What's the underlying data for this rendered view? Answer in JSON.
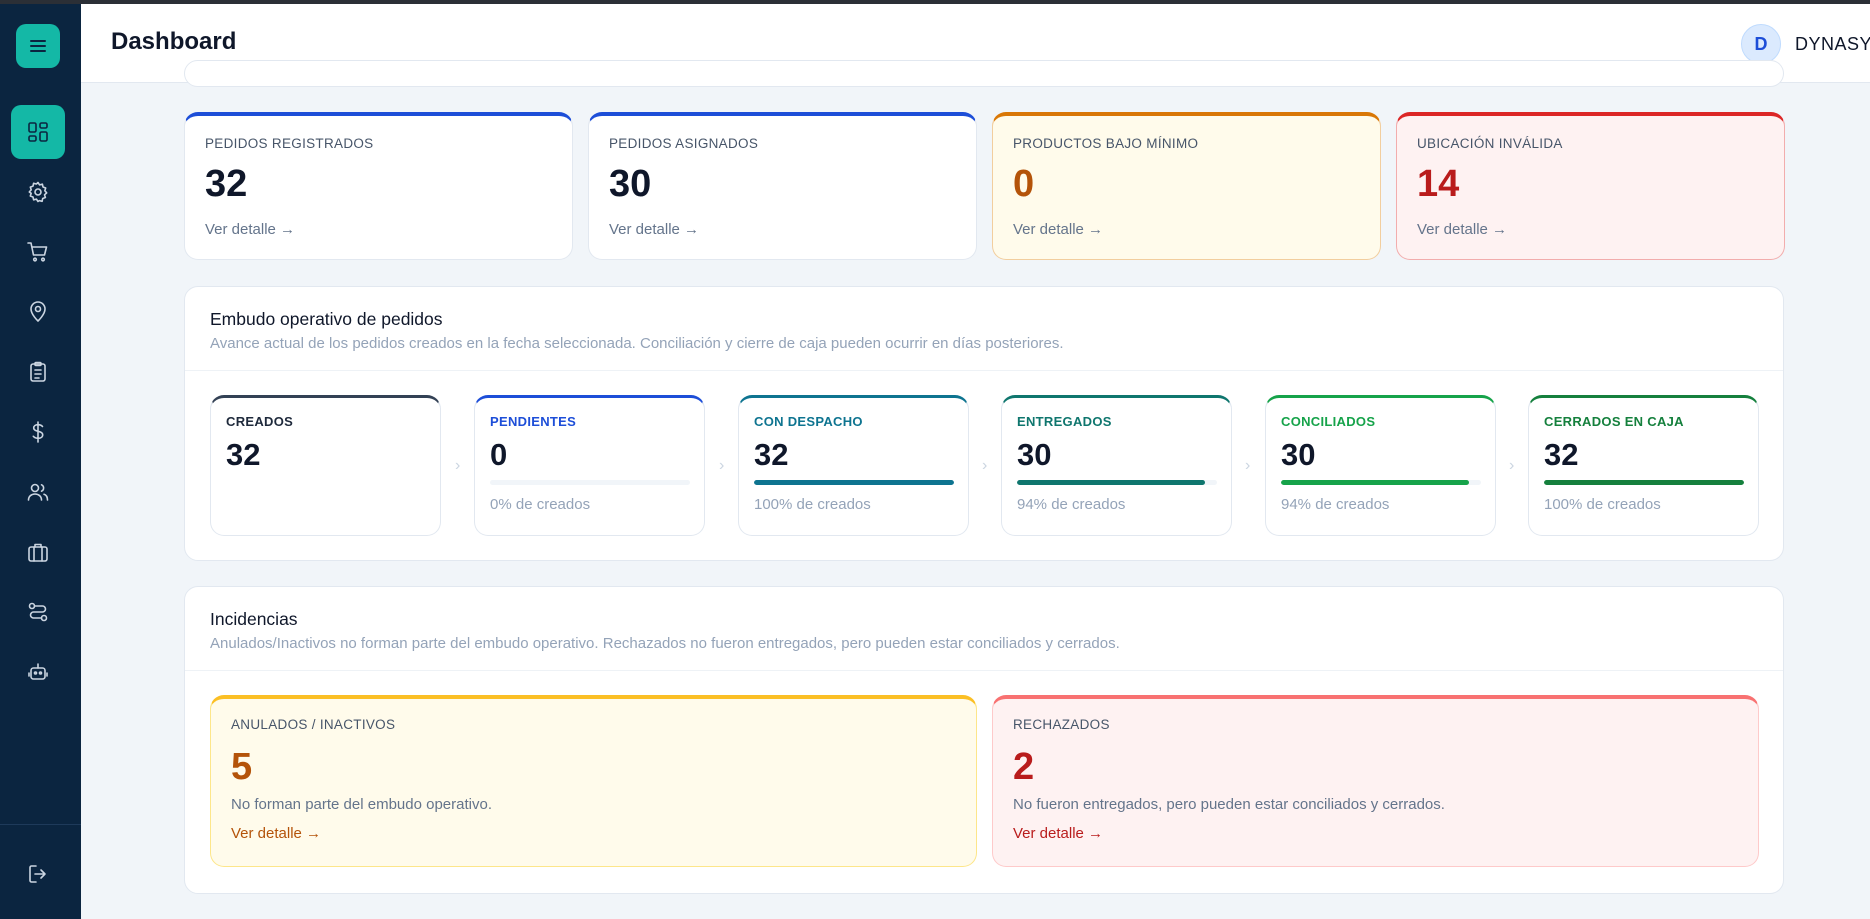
{
  "header": {
    "title": "Dashboard",
    "avatar_initial": "D",
    "user_name": "DYNASYS"
  },
  "sidebar": {
    "items": [
      {
        "icon": "dashboard-icon",
        "active": true
      },
      {
        "icon": "gear-icon"
      },
      {
        "icon": "cart-icon"
      },
      {
        "icon": "location-pin-icon"
      },
      {
        "icon": "clipboard-icon"
      },
      {
        "icon": "dollar-icon"
      },
      {
        "icon": "users-icon"
      },
      {
        "icon": "briefcase-icon"
      },
      {
        "icon": "route-icon"
      },
      {
        "icon": "robot-icon"
      }
    ],
    "logout_icon": "logout-icon"
  },
  "kpis": [
    {
      "label": "PEDIDOS REGISTRADOS",
      "value": "32",
      "link": "Ver detalle →",
      "accent": "#1d4ed8",
      "value_color": "#0f172a",
      "bg": "#ffffff"
    },
    {
      "label": "PEDIDOS ASIGNADOS",
      "value": "30",
      "link": "Ver detalle →",
      "accent": "#1d4ed8",
      "value_color": "#0f172a",
      "bg": "#ffffff"
    },
    {
      "label": "PRODUCTOS BAJO MÍNIMO",
      "value": "0",
      "link": "Ver detalle →",
      "accent": "#d97706",
      "value_color": "#b45309",
      "bg": "#fffbeb"
    },
    {
      "label": "UBICACIÓN INVÁLIDA",
      "value": "14",
      "link": "Ver detalle →",
      "accent": "#dc2626",
      "value_color": "#b91c1c",
      "bg": "#fef2f2"
    }
  ],
  "funnel": {
    "title": "Embudo operativo de pedidos",
    "subtitle": "Avance actual de los pedidos creados en la fecha seleccionada. Conciliación y cierre de caja pueden ocurrir en días posteriores.",
    "separator": "›",
    "stages": [
      {
        "label": "CREADOS",
        "value": "32",
        "percent": null,
        "pct_text": "",
        "color": "#334155"
      },
      {
        "label": "PENDIENTES",
        "value": "0",
        "percent": 0,
        "pct_text": "0% de creados",
        "color": "#1d4ed8"
      },
      {
        "label": "CON DESPACHO",
        "value": "32",
        "percent": 100,
        "pct_text": "100% de creados",
        "color": "#0e7490"
      },
      {
        "label": "ENTREGADOS",
        "value": "30",
        "percent": 94,
        "pct_text": "94% de creados",
        "color": "#0f766e"
      },
      {
        "label": "CONCILIADOS",
        "value": "30",
        "percent": 94,
        "pct_text": "94% de creados",
        "color": "#16a34a"
      },
      {
        "label": "CERRADOS EN CAJA",
        "value": "32",
        "percent": 100,
        "pct_text": "100% de creados",
        "color": "#15803d"
      }
    ]
  },
  "incidents": {
    "title": "Incidencias",
    "subtitle": "Anulados/Inactivos no forman parte del embudo operativo. Rechazados no fueron entregados, pero pueden estar conciliados y cerrados.",
    "cards": [
      {
        "label": "ANULADOS / INACTIVOS",
        "value": "5",
        "note": "No forman parte del embudo operativo.",
        "link": "Ver detalle →",
        "accent": "#fbbf24",
        "border": "#fde68a",
        "bg": "#fffbeb",
        "value_color": "#b45309",
        "link_color": "#b45309"
      },
      {
        "label": "RECHAZADOS",
        "value": "2",
        "note": "No fueron entregados, pero pueden estar conciliados y cerrados.",
        "link": "Ver detalle →",
        "accent": "#f87171",
        "border": "#fecaca",
        "bg": "#fef2f2",
        "value_color": "#b91c1c",
        "link_color": "#b91c1c"
      }
    ]
  }
}
